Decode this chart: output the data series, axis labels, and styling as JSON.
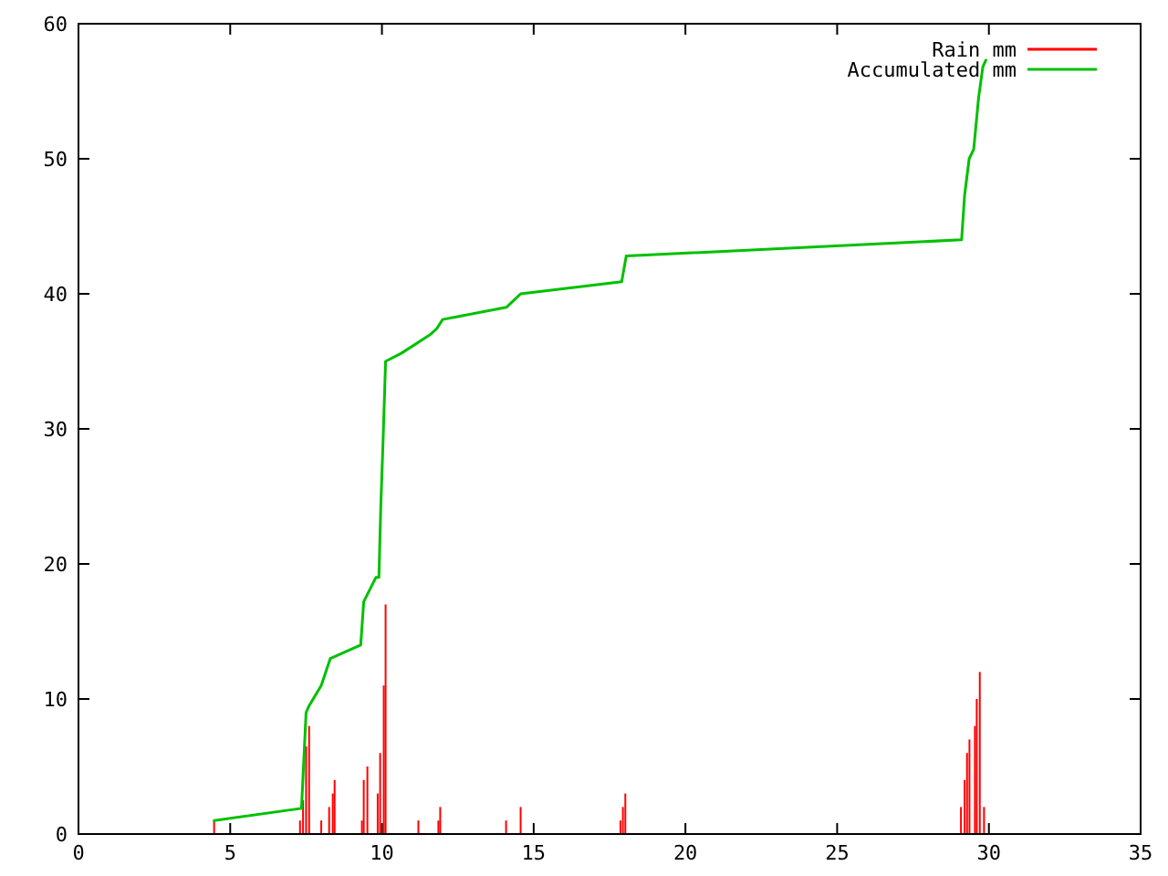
{
  "chart_data": {
    "type": "line",
    "xlim": [
      0,
      35
    ],
    "ylim": [
      0,
      60
    ],
    "xticks": [
      0,
      5,
      10,
      15,
      20,
      25,
      30,
      35
    ],
    "yticks": [
      0,
      10,
      20,
      30,
      40,
      50,
      60
    ],
    "grid": false,
    "legend": "top right",
    "series": [
      {
        "name": "Rain mm",
        "type": "bar",
        "color": "#ff0000",
        "x": [
          4.47,
          7.3,
          7.4,
          7.5,
          7.6,
          8.0,
          8.26,
          8.38,
          8.44,
          9.34,
          9.4,
          9.52,
          9.86,
          9.94,
          10.06,
          10.12,
          11.2,
          11.86,
          11.92,
          14.09,
          14.57,
          17.86,
          17.94,
          18.02,
          29.08,
          29.2,
          29.28,
          29.36,
          29.54,
          29.6,
          29.7,
          29.84
        ],
        "values": [
          1,
          1,
          2.5,
          6.5,
          8,
          1,
          2,
          3,
          4,
          1,
          4,
          5,
          3,
          6,
          11,
          17,
          1,
          1,
          2,
          1,
          2,
          1,
          2,
          3,
          2,
          4,
          6,
          7,
          8,
          10,
          12,
          2
        ]
      },
      {
        "name": "Accumulated mm",
        "color": "#00c000",
        "x": [
          4.47,
          7.35,
          7.5,
          7.6,
          8.0,
          8.3,
          9.3,
          9.4,
          9.8,
          9.9,
          9.96,
          10.04,
          10.12,
          10.64,
          11.6,
          11.8,
          12,
          14.1,
          14.57,
          17.9,
          18.05,
          29.1,
          29.2,
          29.35,
          29.5,
          29.66,
          29.8,
          29.9
        ],
        "values": [
          1,
          1.9,
          9,
          9.5,
          11,
          13,
          14,
          17.2,
          19,
          19,
          24.1,
          29.3,
          35,
          35.6,
          37,
          37.4,
          38.1,
          39,
          40,
          40.9,
          42.8,
          44,
          47.3,
          50,
          50.7,
          54.5,
          56.8,
          57.3
        ]
      }
    ]
  }
}
